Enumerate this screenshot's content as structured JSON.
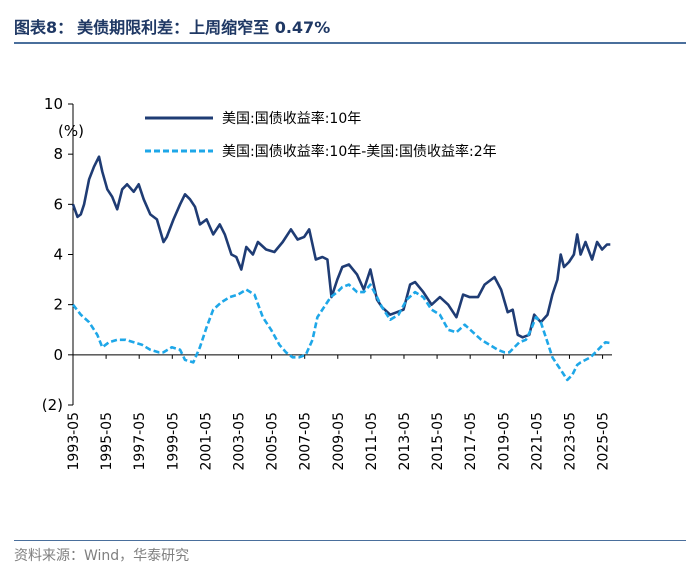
{
  "header": {
    "figure_label": "图表8：",
    "title": "美债期限利差：上周缩窄至 0.47%"
  },
  "footer": {
    "source": "资料来源：Wind，华泰研究"
  },
  "colors": {
    "series_10y": "#1f3c74",
    "series_spread": "#1ea7e8",
    "accent": "#4a6f9c"
  },
  "chart_data": {
    "type": "line",
    "ylabel": "(%)",
    "ylim": [
      -2,
      10
    ],
    "y_ticks": [
      10,
      8,
      6,
      4,
      2,
      0,
      -2
    ],
    "y_tick_labels": [
      "10",
      "8",
      "6",
      "4",
      "2",
      "0",
      "(2)"
    ],
    "x_tick_labels": [
      "1993-05",
      "1995-05",
      "1997-05",
      "1999-05",
      "2001-05",
      "2003-05",
      "2005-05",
      "2007-05",
      "2009-05",
      "2011-05",
      "2013-05",
      "2015-05",
      "2017-05",
      "2019-05",
      "2021-05",
      "2023-05",
      "2025-05"
    ],
    "x_range": [
      1993.33,
      2025.9
    ],
    "series": [
      {
        "name": "美国:国债收益率:10年",
        "style": "solid",
        "x": [
          1993.33,
          1993.6,
          1993.8,
          1994.0,
          1994.3,
          1994.6,
          1994.9,
          1995.1,
          1995.4,
          1995.7,
          1996.0,
          1996.3,
          1996.6,
          1997.0,
          1997.3,
          1997.6,
          1998.0,
          1998.4,
          1998.8,
          1999.0,
          1999.4,
          1999.8,
          2000.1,
          2000.4,
          2000.7,
          2001.0,
          2001.4,
          2001.8,
          2002.2,
          2002.5,
          2002.9,
          2003.2,
          2003.5,
          2003.8,
          2004.2,
          2004.5,
          2005.0,
          2005.5,
          2006.0,
          2006.5,
          2006.9,
          2007.3,
          2007.6,
          2008.0,
          2008.4,
          2008.7,
          2008.95,
          2009.3,
          2009.6,
          2010.0,
          2010.5,
          2010.9,
          2011.3,
          2011.7,
          2012.0,
          2012.5,
          2012.9,
          2013.3,
          2013.7,
          2014.0,
          2014.5,
          2015.0,
          2015.5,
          2016.0,
          2016.5,
          2016.9,
          2017.3,
          2017.8,
          2018.2,
          2018.8,
          2019.2,
          2019.6,
          2019.9,
          2020.2,
          2020.5,
          2020.9,
          2021.2,
          2021.6,
          2022.0,
          2022.3,
          2022.6,
          2022.8,
          2023.0,
          2023.3,
          2023.6,
          2023.8,
          2024.0,
          2024.3,
          2024.7,
          2025.0,
          2025.3,
          2025.6,
          2025.8
        ],
        "y": [
          6.0,
          5.5,
          5.6,
          6.0,
          7.0,
          7.5,
          7.9,
          7.3,
          6.6,
          6.3,
          5.8,
          6.6,
          6.8,
          6.5,
          6.8,
          6.2,
          5.6,
          5.4,
          4.5,
          4.7,
          5.4,
          6.0,
          6.4,
          6.2,
          5.9,
          5.2,
          5.4,
          4.8,
          5.2,
          4.8,
          4.0,
          3.9,
          3.4,
          4.3,
          4.0,
          4.5,
          4.2,
          4.1,
          4.5,
          5.0,
          4.6,
          4.7,
          5.0,
          3.8,
          3.9,
          3.8,
          2.3,
          3.0,
          3.5,
          3.6,
          3.2,
          2.6,
          3.4,
          2.2,
          1.9,
          1.6,
          1.7,
          1.8,
          2.8,
          2.9,
          2.5,
          2.0,
          2.3,
          2.0,
          1.5,
          2.4,
          2.3,
          2.3,
          2.8,
          3.1,
          2.6,
          1.7,
          1.8,
          0.8,
          0.7,
          0.8,
          1.6,
          1.3,
          1.6,
          2.4,
          3.0,
          4.0,
          3.5,
          3.7,
          4.0,
          4.8,
          4.0,
          4.5,
          3.8,
          4.5,
          4.2,
          4.4,
          4.4
        ]
      },
      {
        "name": "美国:国债收益率:10年-美国:国债收益率:2年",
        "style": "dashed",
        "x": [
          1993.33,
          1993.8,
          1994.3,
          1994.8,
          1995.1,
          1995.5,
          1996.0,
          1996.5,
          1997.0,
          1997.5,
          1998.0,
          1998.5,
          1998.8,
          1999.3,
          1999.8,
          2000.1,
          2000.6,
          2001.0,
          2001.4,
          2001.8,
          2002.3,
          2002.8,
          2003.3,
          2003.8,
          2004.3,
          2004.8,
          2005.3,
          2005.8,
          2006.2,
          2006.6,
          2007.0,
          2007.4,
          2007.8,
          2008.1,
          2008.5,
          2008.9,
          2009.3,
          2009.6,
          2010.0,
          2010.5,
          2010.9,
          2011.3,
          2011.7,
          2012.0,
          2012.5,
          2013.0,
          2013.5,
          2014.0,
          2014.5,
          2015.0,
          2015.5,
          2016.0,
          2016.5,
          2017.0,
          2017.5,
          2018.0,
          2018.5,
          2019.0,
          2019.4,
          2019.7,
          2020.0,
          2020.3,
          2020.7,
          2021.0,
          2021.3,
          2021.6,
          2022.0,
          2022.3,
          2022.6,
          2022.9,
          2023.2,
          2023.5,
          2023.8,
          2024.0,
          2024.3,
          2024.6,
          2024.9,
          2025.2,
          2025.5,
          2025.8
        ],
        "y": [
          2.0,
          1.6,
          1.3,
          0.8,
          0.3,
          0.5,
          0.6,
          0.6,
          0.5,
          0.4,
          0.2,
          0.1,
          0.1,
          0.3,
          0.2,
          -0.2,
          -0.3,
          0.3,
          1.1,
          1.8,
          2.1,
          2.3,
          2.4,
          2.6,
          2.4,
          1.5,
          1.0,
          0.4,
          0.1,
          -0.1,
          -0.1,
          0.0,
          0.6,
          1.5,
          1.9,
          2.3,
          2.5,
          2.7,
          2.8,
          2.5,
          2.5,
          2.8,
          2.3,
          1.9,
          1.4,
          1.6,
          2.2,
          2.5,
          2.3,
          1.8,
          1.6,
          1.0,
          0.9,
          1.2,
          0.9,
          0.6,
          0.4,
          0.2,
          0.1,
          0.1,
          0.3,
          0.5,
          0.6,
          1.0,
          1.5,
          1.3,
          0.5,
          -0.1,
          -0.4,
          -0.7,
          -1.0,
          -0.8,
          -0.4,
          -0.3,
          -0.2,
          -0.1,
          0.1,
          0.3,
          0.5,
          0.47
        ]
      }
    ]
  }
}
